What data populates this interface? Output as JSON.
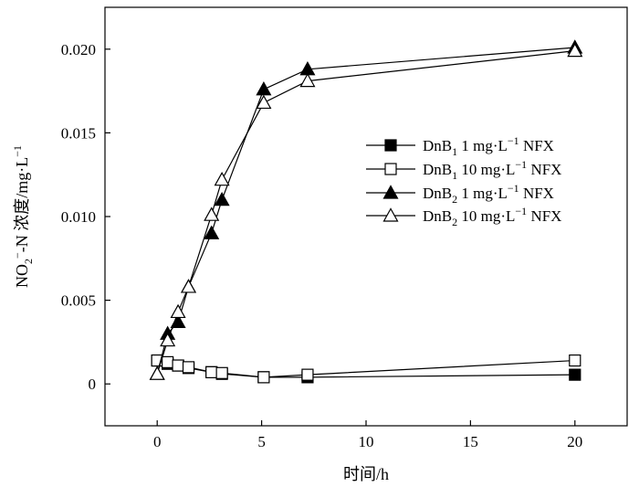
{
  "chart_data": {
    "type": "line",
    "xlabel": "时间/h",
    "ylabel": {
      "base": "NO",
      "sub": "2",
      "sup": "−",
      "rest": "-N 浓度/mg·L",
      "unit_sup": "−1"
    },
    "xlim": [
      -2.5,
      22.5
    ],
    "ylim": [
      -0.0025,
      0.0225
    ],
    "x_ticks": [
      0,
      5,
      10,
      15,
      20
    ],
    "x_tick_labels": [
      "0",
      "5",
      "10",
      "15",
      "20"
    ],
    "y_ticks": [
      0,
      0.005,
      0.01,
      0.015,
      0.02
    ],
    "y_tick_labels": [
      "0",
      "0.005",
      "0.010",
      "0.015",
      "0.020"
    ],
    "grid": false,
    "legend_position": "center-right",
    "series": [
      {
        "name": "DnB1 1 mg·L−1 NFX",
        "label": {
          "a": "DnB",
          "sub": "1",
          "b": " 1 mg·L",
          "sup": "−1",
          "c": " NFX"
        },
        "marker": "square-filled",
        "x": [
          0,
          0.5,
          1,
          1.5,
          2.6,
          3.1,
          5.1,
          7.2,
          20
        ],
        "y": [
          0.0014,
          0.0012,
          0.0011,
          0.00095,
          0.0007,
          0.0006,
          0.0004,
          0.0004,
          0.00055
        ]
      },
      {
        "name": "DnB1 10 mg·L−1 NFX",
        "label": {
          "a": "DnB",
          "sub": "1",
          "b": " 10 mg·L",
          "sup": "−1",
          "c": " NFX"
        },
        "marker": "square-open",
        "x": [
          0,
          0.5,
          1,
          1.5,
          2.6,
          3.1,
          5.1,
          7.2,
          20
        ],
        "y": [
          0.0014,
          0.0013,
          0.0011,
          0.001,
          0.0007,
          0.00065,
          0.0004,
          0.00055,
          0.0014
        ]
      },
      {
        "name": "DnB2 1 mg·L−1 NFX",
        "label": {
          "a": "DnB",
          "sub": "2",
          "b": " 1 mg·L",
          "sup": "−1",
          "c": " NFX"
        },
        "marker": "triangle-filled",
        "x": [
          0,
          0.5,
          1,
          1.5,
          2.6,
          3.1,
          5.1,
          7.2,
          20
        ],
        "y": [
          0.0006,
          0.003,
          0.0037,
          0.0058,
          0.009,
          0.011,
          0.0176,
          0.0188,
          0.0201
        ]
      },
      {
        "name": "DnB2 10 mg·L−1 NFX",
        "label": {
          "a": "DnB",
          "sub": "2",
          "b": " 10 mg·L",
          "sup": "−1",
          "c": " NFX"
        },
        "marker": "triangle-open",
        "x": [
          0,
          0.5,
          1,
          1.5,
          2.6,
          3.1,
          5.1,
          7.2,
          20
        ],
        "y": [
          0.0006,
          0.0026,
          0.0043,
          0.0058,
          0.0101,
          0.0122,
          0.0168,
          0.0181,
          0.0199
        ]
      }
    ]
  }
}
